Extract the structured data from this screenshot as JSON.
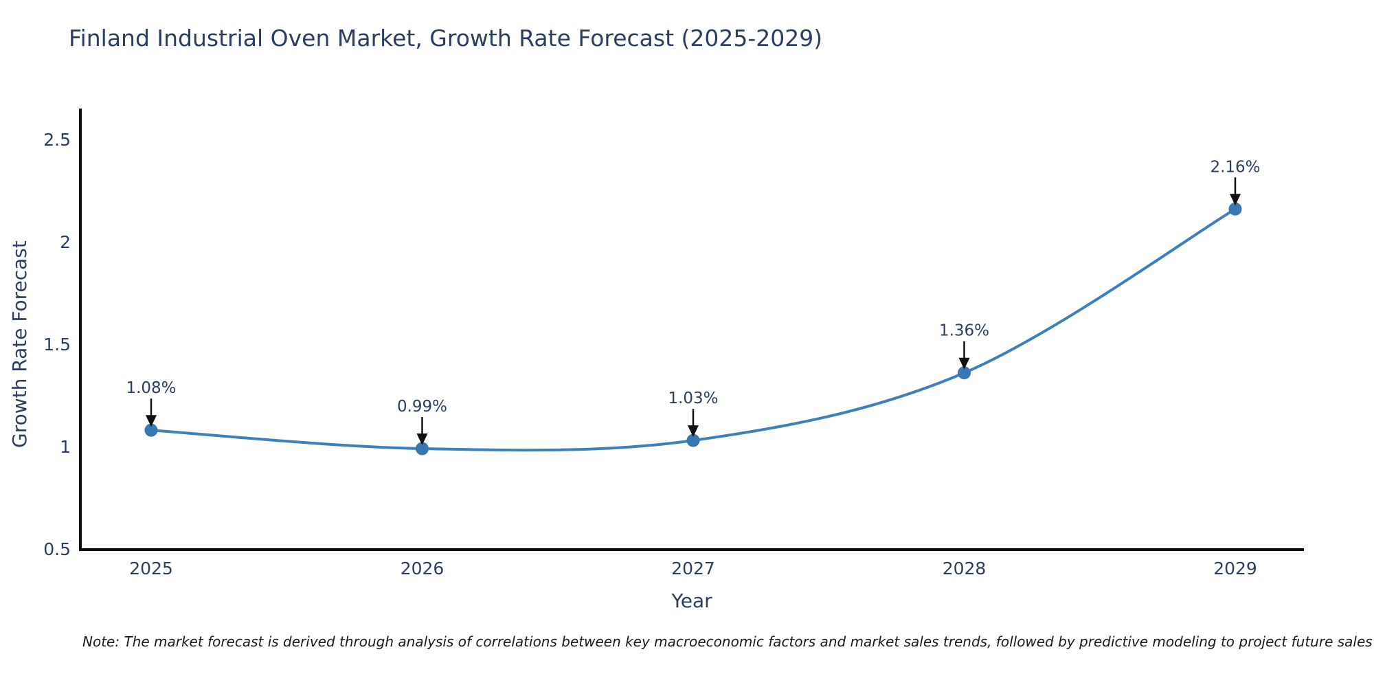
{
  "title": "Finland Industrial Oven Market, Growth Rate Forecast (2025-2029)",
  "note": "Note: The market forecast is derived through analysis of correlations between key macroeconomic factors and market sales trends, followed by predictive modeling to project future sales",
  "chart_data": {
    "type": "line",
    "title": "Finland Industrial Oven Market, Growth Rate Forecast (2025-2029)",
    "xlabel": "Year",
    "ylabel": "Growth Rate Forecast",
    "categories": [
      2025,
      2026,
      2027,
      2028,
      2029
    ],
    "series": [
      {
        "name": "Growth Rate Forecast",
        "values": [
          1.08,
          0.99,
          1.03,
          1.36,
          2.16
        ]
      }
    ],
    "point_labels": [
      "1.08%",
      "0.99%",
      "1.03%",
      "1.36%",
      "2.16%"
    ],
    "yticks": [
      0.5,
      1,
      1.5,
      2,
      2.5
    ],
    "ylim": [
      0.497,
      2.644
    ],
    "grid": false,
    "legend_position": "none",
    "line_shape": "spline",
    "colors": {
      "line": "#3d80bc",
      "marker": "#3778b2",
      "axis_line": "#0d0d0d",
      "annotation_arrow": "#111111",
      "text": "#2a3f5f"
    }
  }
}
